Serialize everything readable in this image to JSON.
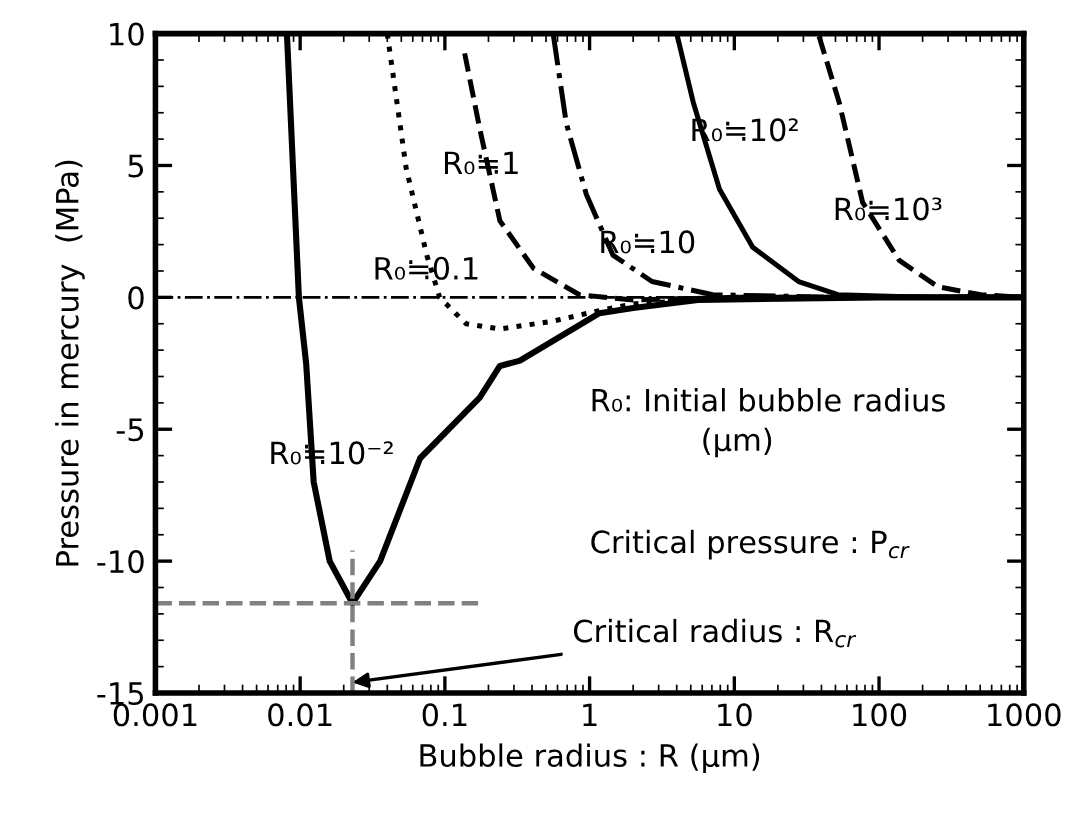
{
  "chart_data": {
    "type": "line",
    "xlabel": "Bubble radius : R (μm)",
    "ylabel": "Pressure in mercury  (MPa)",
    "log": "x",
    "xlim": [
      0.001,
      1000
    ],
    "ylim": [
      -15,
      10
    ],
    "xticks": [
      0.001,
      0.01,
      0.1,
      1,
      10,
      100,
      1000
    ],
    "yticks": [
      -15,
      -10,
      -5,
      0,
      5,
      10
    ],
    "grid": false,
    "legend": false,
    "marker": "none",
    "series": [
      {
        "color": "#000000",
        "line_style": "solid",
        "x": [
          0.0081,
          0.0098,
          0.011,
          0.0124,
          0.016,
          0.023,
          0.0357,
          0.0674,
          0.174,
          0.24,
          0.33,
          1.17,
          2,
          5.6,
          100,
          1000
        ],
        "values": [
          10,
          0,
          -2.5,
          -7,
          -10,
          -11.6,
          -10,
          -6.1,
          -3.8,
          -2.6,
          -2.4,
          -0.6,
          -0.4,
          -0.1,
          0,
          0
        ]
      },
      {
        "color": "#000000",
        "line_style": "dotted",
        "x": [
          0.04,
          0.054,
          0.075,
          0.092,
          0.14,
          0.24,
          0.56,
          1.17,
          2,
          10,
          1000
        ],
        "values": [
          10,
          4.9,
          1.6,
          0,
          -1,
          -1.2,
          -0.9,
          -0.5,
          -0.25,
          0,
          0
        ]
      },
      {
        "color": "#000000",
        "line_style": "dashed",
        "x": [
          0.137,
          0.174,
          0.24,
          0.41,
          0.85,
          2,
          10,
          1000
        ],
        "values": [
          9.25,
          6.4,
          2.9,
          1.1,
          0.1,
          -0.1,
          0,
          0
        ]
      },
      {
        "color": "#000000",
        "line_style": "dashdot",
        "x": [
          0.56,
          0.69,
          0.95,
          1.45,
          2.7,
          7.1,
          50,
          1000
        ],
        "values": [
          10,
          6.6,
          3.9,
          1.6,
          0.6,
          0.1,
          0,
          0
        ]
      },
      {
        "color": "#000000",
        "line_style": "solid",
        "x": [
          4,
          5.2,
          7.9,
          13.4,
          27.8,
          52,
          200,
          1000
        ],
        "values": [
          10,
          7.4,
          4.1,
          1.9,
          0.6,
          0.1,
          0,
          0
        ]
      },
      {
        "color": "#000000",
        "line_style": "dashed",
        "x": [
          38.5,
          53,
          77,
          138,
          255,
          505,
          1000
        ],
        "values": [
          9.9,
          7.4,
          3.6,
          1.4,
          0.4,
          0.1,
          0
        ]
      },
      {
        "color": "#808080",
        "line_style": "dashed",
        "x": [
          0.001,
          0.17
        ],
        "values": [
          -11.6,
          -11.6
        ]
      },
      {
        "color": "#808080",
        "line_style": "dashed",
        "x": [
          0.023,
          0.023
        ],
        "values": [
          -15,
          -9.6
        ]
      }
    ],
    "ref_lines": [
      {
        "axis": "y",
        "value": 0,
        "color": "#000000",
        "line_style": "dashdot"
      }
    ],
    "annotations": [
      "R₀≒10⁻²",
      "R₀≒0.1",
      "R₀≒1",
      "R₀≒10",
      "R₀≒10²",
      "R₀≒10³",
      "R₀: Initial bubble radius",
      "(μm)",
      "Critical pressure : P$_{cr}$",
      {
        "text": "Critical radius : R$_{cr}$",
        "x": 0.023,
        "y": -14.6
      }
    ]
  }
}
